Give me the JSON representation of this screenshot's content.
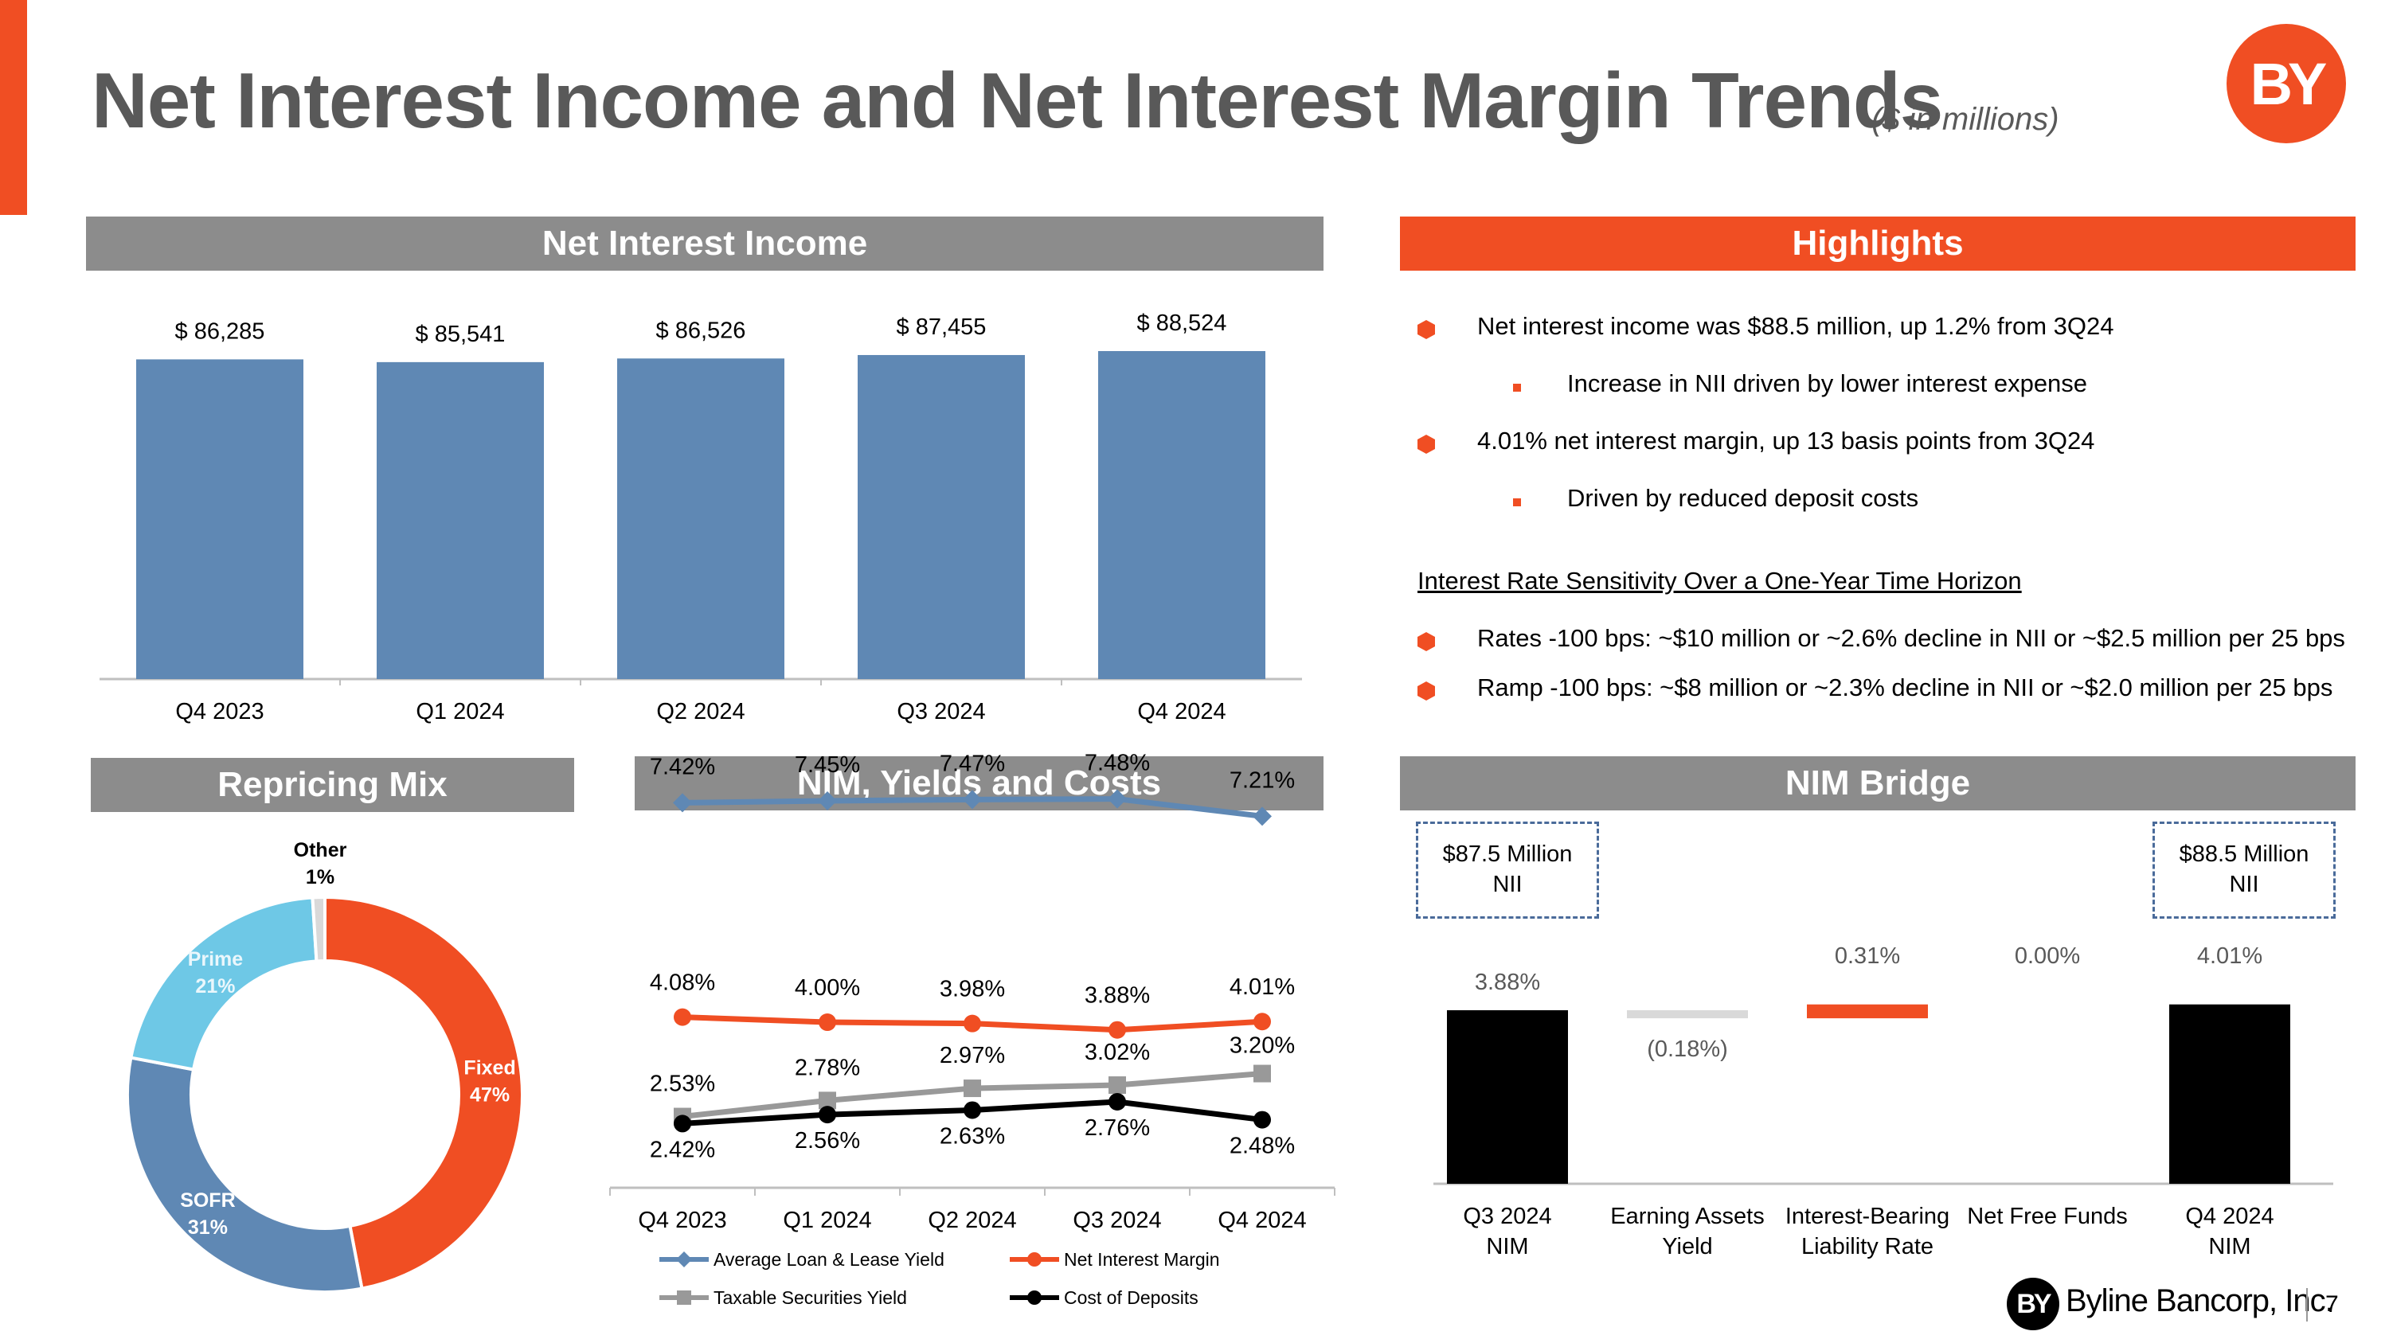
{
  "title": "Net Interest Income and Net Interest Margin Trends",
  "subtitle": "($ in millions)",
  "logo_text": "BY",
  "footer": {
    "company": "Byline Bancorp, Inc.",
    "page": "7",
    "logo_text": "BY"
  },
  "colors": {
    "accent": "#f04e23",
    "bar_blue": "#5f88b4",
    "header_gray": "#8c8c8c",
    "light_blue": "#6ec8e6",
    "taxable_gray": "#999999"
  },
  "sections": {
    "nii": "Net Interest Income",
    "highlights": "Highlights",
    "repricing": "Repricing Mix",
    "nim_yields": "NIM, Yields and Costs",
    "bridge": "NIM Bridge"
  },
  "highlights": {
    "items": [
      {
        "level": 1,
        "text": "Net interest income was $88.5 million, up 1.2% from 3Q24"
      },
      {
        "level": 2,
        "text": "Increase in NII driven by lower interest expense"
      },
      {
        "level": 1,
        "text": "4.01% net interest margin, up 13 basis points from 3Q24"
      },
      {
        "level": 2,
        "text": "Driven by reduced deposit costs"
      }
    ],
    "sensitivity_title": "Interest Rate Sensitivity Over a One-Year Time Horizon",
    "sensitivity_items": [
      "Rates -100 bps: ~$10 million or ~2.6% decline in NII or ~$2.5 million per 25 bps",
      "Ramp -100 bps: ~$8 million or ~2.3% decline in NII or ~$2.0 million per 25 bps"
    ]
  },
  "chart_data": [
    {
      "id": "nii",
      "type": "bar",
      "categories": [
        "Q4 2023",
        "Q1 2024",
        "Q2 2024",
        "Q3 2024",
        "Q4 2024"
      ],
      "values": [
        86285,
        85541,
        86526,
        87455,
        88524
      ],
      "labels": [
        "$ 86,285",
        "$ 85,541",
        "$ 86,526",
        "$ 87,455",
        "$ 88,524"
      ],
      "color": "#5f88b4"
    },
    {
      "id": "repricing",
      "type": "pie",
      "slices": [
        {
          "name": "Fixed",
          "value": 47,
          "label": "47%",
          "color": "#f04e23"
        },
        {
          "name": "SOFR",
          "value": 31,
          "label": "31%",
          "color": "#5f88b4"
        },
        {
          "name": "Prime",
          "value": 21,
          "label": "21%",
          "color": "#6ec8e6"
        },
        {
          "name": "Other",
          "value": 1,
          "label": "1%",
          "color": "#d9d9d9"
        }
      ]
    },
    {
      "id": "nim_yields",
      "type": "line",
      "categories": [
        "Q4 2023",
        "Q1 2024",
        "Q2 2024",
        "Q3 2024",
        "Q4 2024"
      ],
      "series": [
        {
          "name": "Average Loan & Lease Yield",
          "values": [
            7.42,
            7.45,
            7.47,
            7.48,
            7.21
          ],
          "labels": [
            "7.42%",
            "7.45%",
            "7.47%",
            "7.48%",
            "7.21%"
          ],
          "color": "#5f88b4",
          "marker": "diamond"
        },
        {
          "name": "Net Interest Margin",
          "values": [
            4.08,
            4.0,
            3.98,
            3.88,
            4.01
          ],
          "labels": [
            "4.08%",
            "4.00%",
            "3.98%",
            "3.88%",
            "4.01%"
          ],
          "color": "#f04e23",
          "marker": "circle"
        },
        {
          "name": "Taxable Securities Yield",
          "values": [
            2.53,
            2.78,
            2.97,
            3.02,
            3.2
          ],
          "labels": [
            "2.53%",
            "2.78%",
            "2.97%",
            "3.02%",
            "3.20%"
          ],
          "color": "#999999",
          "marker": "square"
        },
        {
          "name": "Cost of Deposits",
          "values": [
            2.42,
            2.56,
            2.63,
            2.76,
            2.48
          ],
          "labels": [
            "2.42%",
            "2.56%",
            "2.63%",
            "2.76%",
            "2.48%"
          ],
          "color": "#000000",
          "marker": "circle"
        }
      ]
    },
    {
      "id": "bridge",
      "type": "bar",
      "subtype": "waterfall",
      "categories": [
        "Q3 2024\nNIM",
        "Earning Assets\nYield",
        "Interest-Bearing\nLiability Rate",
        "Net Free Funds",
        "Q4 2024\nNIM"
      ],
      "values": [
        3.88,
        -0.18,
        0.31,
        0.0,
        4.01
      ],
      "labels": [
        "3.88%",
        "(0.18%)",
        "0.31%",
        "0.00%",
        "4.01%"
      ],
      "kinds": [
        "total",
        "delta",
        "delta",
        "delta",
        "total"
      ],
      "colors": [
        "#000000",
        "#d9d9d9",
        "#f04e23",
        "#f04e23",
        "#000000"
      ],
      "callouts": [
        {
          "text": "$87.5 Million\nNII"
        },
        {
          "text": "$88.5 Million\nNII"
        }
      ]
    }
  ]
}
